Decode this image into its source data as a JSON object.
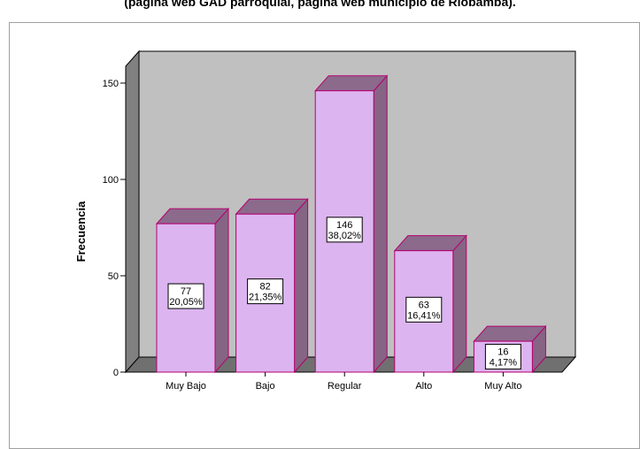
{
  "title": "(página web GAD parroquial, página web municipio de Riobamba).",
  "chart_data": {
    "type": "bar",
    "categories": [
      "Muy Bajo",
      "Bajo",
      "Regular",
      "Alto",
      "Muy Alto"
    ],
    "values": [
      77,
      82,
      146,
      63,
      16
    ],
    "percent_labels": [
      "20,05%",
      "21,35%",
      "38,02%",
      "16,41%",
      "4,17%"
    ],
    "ylabel": "Frecuencia",
    "xlabel": "",
    "ylim": [
      0,
      150
    ],
    "yticks": [
      "0",
      "50",
      "100",
      "150"
    ],
    "grid": false,
    "legend": "none",
    "colors": {
      "bar_front": "#dcb4f0",
      "bar_top": "#8c6a8c",
      "bar_side": "#866484",
      "bar_stroke": "#b4006e",
      "plot_back": "#c0c0c0",
      "plot_floor": "#707070",
      "plot_wall": "#808080"
    }
  }
}
